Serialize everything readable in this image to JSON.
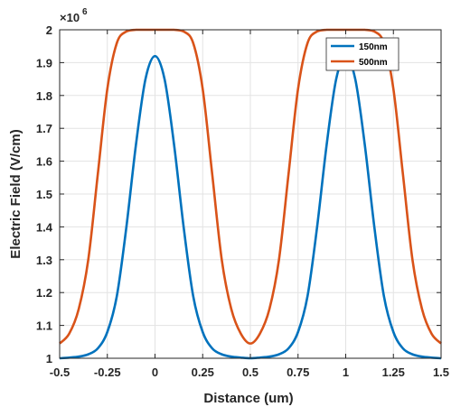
{
  "chart_data": {
    "type": "line",
    "xlabel": "Distance (um)",
    "ylabel": "Electric Field (V/cm)",
    "y_exponent_base": "×10",
    "y_exponent_power": "6",
    "xlim": [
      -0.5,
      1.5
    ],
    "ylim": [
      1000000,
      2000000
    ],
    "x_ticks": [
      -0.5,
      -0.25,
      0,
      0.25,
      0.5,
      0.75,
      1,
      1.25,
      1.5
    ],
    "x_tick_labels": [
      "-0.5",
      "-0.25",
      "0",
      "0.25",
      "0.5",
      "0.75",
      "1",
      "1.25",
      "1.5"
    ],
    "y_ticks": [
      1000000,
      1100000,
      1200000,
      1300000,
      1400000,
      1500000,
      1600000,
      1700000,
      1800000,
      1900000,
      2000000
    ],
    "y_tick_labels": [
      "1",
      "1.1",
      "1.2",
      "1.3",
      "1.4",
      "1.5",
      "1.6",
      "1.7",
      "1.8",
      "1.9",
      "2"
    ],
    "grid": true,
    "legend_position": "top-right",
    "series": [
      {
        "name": "150nm",
        "color": "#0072BD",
        "x": [
          -0.5,
          -0.45,
          -0.4,
          -0.35,
          -0.3,
          -0.25,
          -0.2,
          -0.15,
          -0.1,
          -0.05,
          0,
          0.05,
          0.1,
          0.15,
          0.2,
          0.25,
          0.3,
          0.35,
          0.4,
          0.45,
          0.5,
          0.55,
          0.6,
          0.65,
          0.7,
          0.75,
          0.8,
          0.85,
          0.9,
          0.95,
          1,
          1.05,
          1.1,
          1.15,
          1.2,
          1.25,
          1.3,
          1.35,
          1.4,
          1.45,
          1.5
        ],
        "y": [
          1000000,
          1002000,
          1005000,
          1012000,
          1030000,
          1080000,
          1190000,
          1400000,
          1650000,
          1850000,
          1920000,
          1850000,
          1650000,
          1400000,
          1190000,
          1080000,
          1030000,
          1012000,
          1005000,
          1002000,
          1000000,
          1002000,
          1005000,
          1012000,
          1030000,
          1080000,
          1190000,
          1400000,
          1650000,
          1850000,
          1920000,
          1850000,
          1650000,
          1400000,
          1190000,
          1080000,
          1030000,
          1012000,
          1005000,
          1002000,
          1000000
        ]
      },
      {
        "name": "500nm",
        "color": "#D95319",
        "x": [
          -0.5,
          -0.45,
          -0.4,
          -0.35,
          -0.3,
          -0.25,
          -0.2,
          -0.15,
          -0.1,
          -0.05,
          0,
          0.05,
          0.1,
          0.15,
          0.2,
          0.25,
          0.3,
          0.35,
          0.4,
          0.45,
          0.5,
          0.55,
          0.6,
          0.65,
          0.7,
          0.75,
          0.8,
          0.85,
          0.9,
          0.95,
          1,
          1.05,
          1.1,
          1.15,
          1.2,
          1.25,
          1.3,
          1.35,
          1.4,
          1.45,
          1.5
        ],
        "y": [
          1045000,
          1075000,
          1150000,
          1300000,
          1560000,
          1820000,
          1960000,
          1995000,
          2000000,
          2000000,
          2000000,
          2000000,
          2000000,
          1995000,
          1960000,
          1820000,
          1560000,
          1300000,
          1150000,
          1075000,
          1045000,
          1075000,
          1150000,
          1300000,
          1560000,
          1820000,
          1960000,
          1995000,
          2000000,
          2000000,
          2000000,
          2000000,
          2000000,
          1995000,
          1960000,
          1820000,
          1560000,
          1300000,
          1150000,
          1075000,
          1045000
        ]
      }
    ]
  }
}
